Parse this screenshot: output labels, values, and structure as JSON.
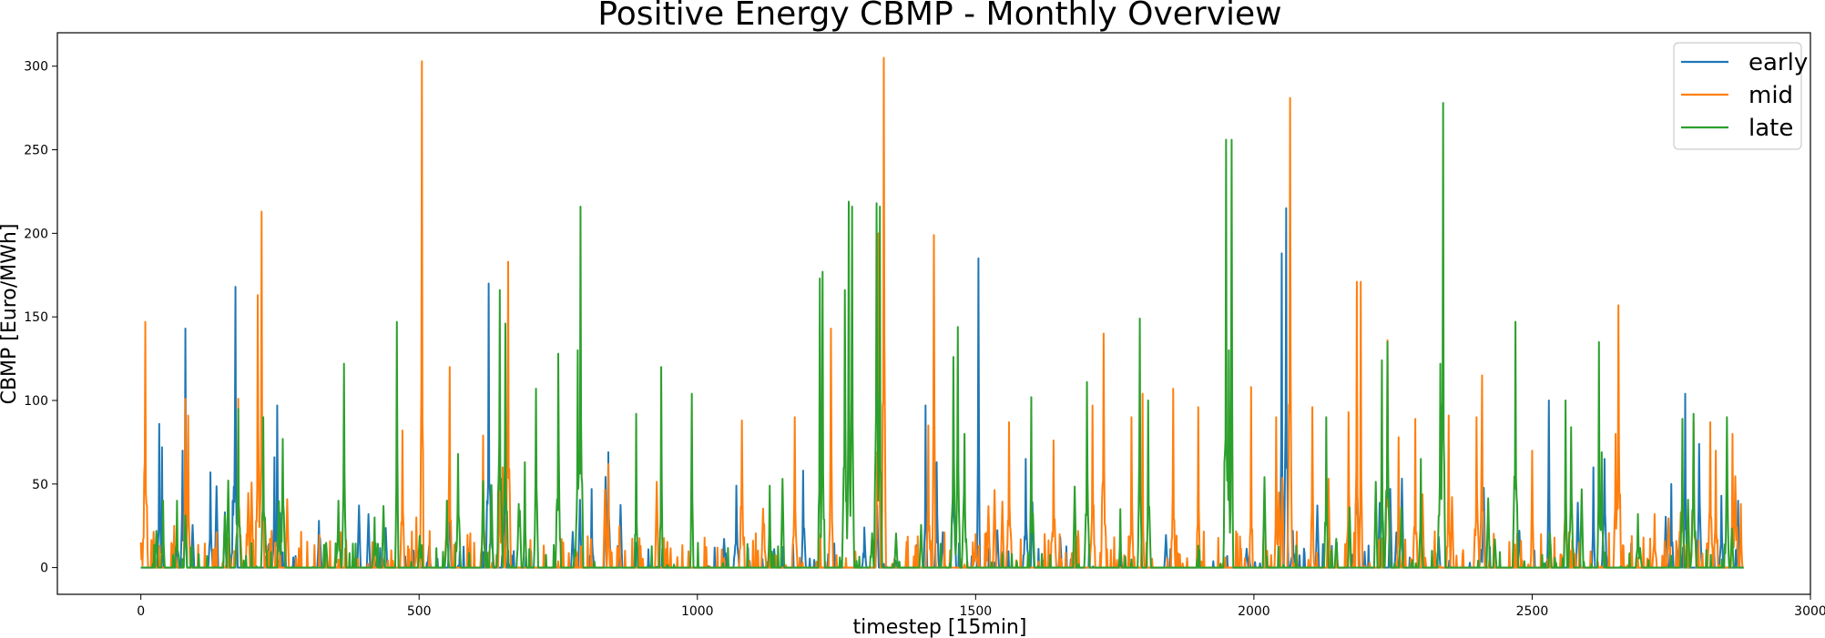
{
  "chart_data": {
    "type": "line",
    "title": "Positive Energy CBMP - Monthly Overview",
    "xlabel": "timestep [15min]",
    "ylabel": "CBMP [Euro/MWh]",
    "xlim": [
      -150,
      3000
    ],
    "ylim": [
      -16,
      320
    ],
    "xticks": [
      0,
      500,
      1000,
      1500,
      2000,
      2500,
      3000
    ],
    "yticks": [
      0,
      50,
      100,
      150,
      200,
      250,
      300
    ],
    "x_range": [
      0,
      2880
    ],
    "grid": false,
    "legend_position": "top-right",
    "series": [
      {
        "name": "early",
        "color": "#1f77b4",
        "peaks": [
          [
            33,
            86
          ],
          [
            38,
            72
          ],
          [
            80,
            143
          ],
          [
            75,
            70
          ],
          [
            170,
            168
          ],
          [
            165,
            40
          ],
          [
            125,
            57
          ],
          [
            245,
            97
          ],
          [
            240,
            66
          ],
          [
            320,
            28
          ],
          [
            625,
            170
          ],
          [
            630,
            44
          ],
          [
            810,
            47
          ],
          [
            840,
            69
          ],
          [
            1070,
            49
          ],
          [
            1190,
            58
          ],
          [
            1300,
            24
          ],
          [
            1410,
            97
          ],
          [
            1430,
            63
          ],
          [
            1505,
            185
          ],
          [
            1460,
            100
          ],
          [
            1590,
            65
          ],
          [
            2050,
            188
          ],
          [
            2058,
            215
          ],
          [
            2070,
            22
          ],
          [
            2185,
            110
          ],
          [
            2230,
            60
          ],
          [
            2530,
            100
          ],
          [
            2630,
            65
          ],
          [
            2610,
            60
          ],
          [
            2775,
            104
          ],
          [
            2800,
            74
          ],
          [
            2750,
            50
          ],
          [
            2840,
            43
          ],
          [
            2870,
            40
          ]
        ]
      },
      {
        "name": "mid",
        "color": "#ff7f0e",
        "peaks": [
          [
            0,
            15
          ],
          [
            8,
            147
          ],
          [
            80,
            101
          ],
          [
            85,
            91
          ],
          [
            60,
            25
          ],
          [
            175,
            101
          ],
          [
            210,
            163
          ],
          [
            217,
            213
          ],
          [
            190,
            20
          ],
          [
            470,
            82
          ],
          [
            505,
            303
          ],
          [
            495,
            30
          ],
          [
            555,
            120
          ],
          [
            550,
            40
          ],
          [
            615,
            79
          ],
          [
            660,
            183
          ],
          [
            650,
            60
          ],
          [
            840,
            62
          ],
          [
            860,
            25
          ],
          [
            1080,
            88
          ],
          [
            1120,
            26
          ],
          [
            1175,
            90
          ],
          [
            1240,
            143
          ],
          [
            1335,
            305
          ],
          [
            1325,
            200
          ],
          [
            1425,
            199
          ],
          [
            1415,
            85
          ],
          [
            1500,
            20
          ],
          [
            1560,
            87
          ],
          [
            1640,
            76
          ],
          [
            1730,
            140
          ],
          [
            1710,
            97
          ],
          [
            1800,
            104
          ],
          [
            1780,
            90
          ],
          [
            1855,
            107
          ],
          [
            1900,
            96
          ],
          [
            1995,
            108
          ],
          [
            2040,
            90
          ],
          [
            2065,
            281
          ],
          [
            2105,
            96
          ],
          [
            2170,
            93
          ],
          [
            2185,
            171
          ],
          [
            2192,
            171
          ],
          [
            2240,
            136
          ],
          [
            2260,
            78
          ],
          [
            2290,
            89
          ],
          [
            2350,
            91
          ],
          [
            2410,
            115
          ],
          [
            2400,
            90
          ],
          [
            2500,
            70
          ],
          [
            2560,
            70
          ],
          [
            2655,
            157
          ],
          [
            2650,
            80
          ],
          [
            2720,
            32
          ],
          [
            2790,
            87
          ],
          [
            2820,
            87
          ],
          [
            2830,
            70
          ],
          [
            2860,
            80
          ],
          [
            2875,
            38
          ]
        ]
      },
      {
        "name": "late",
        "color": "#2ca02c",
        "peaks": [
          [
            40,
            40
          ],
          [
            65,
            40
          ],
          [
            175,
            95
          ],
          [
            220,
            90
          ],
          [
            255,
            77
          ],
          [
            365,
            122
          ],
          [
            355,
            40
          ],
          [
            420,
            30
          ],
          [
            460,
            147
          ],
          [
            550,
            40
          ],
          [
            570,
            68
          ],
          [
            645,
            166
          ],
          [
            655,
            146
          ],
          [
            690,
            63
          ],
          [
            710,
            107
          ],
          [
            750,
            128
          ],
          [
            790,
            216
          ],
          [
            785,
            130
          ],
          [
            890,
            92
          ],
          [
            935,
            120
          ],
          [
            990,
            104
          ],
          [
            1130,
            49
          ],
          [
            1220,
            173
          ],
          [
            1225,
            177
          ],
          [
            1265,
            166
          ],
          [
            1272,
            219
          ],
          [
            1278,
            216
          ],
          [
            1322,
            218
          ],
          [
            1328,
            216
          ],
          [
            1460,
            126
          ],
          [
            1468,
            144
          ],
          [
            1480,
            80
          ],
          [
            1600,
            102
          ],
          [
            1700,
            111
          ],
          [
            1760,
            35
          ],
          [
            1795,
            149
          ],
          [
            1810,
            100
          ],
          [
            1950,
            256
          ],
          [
            1960,
            256
          ],
          [
            1955,
            130
          ],
          [
            2130,
            90
          ],
          [
            2230,
            124
          ],
          [
            2240,
            135
          ],
          [
            2300,
            65
          ],
          [
            2340,
            278
          ],
          [
            2335,
            122
          ],
          [
            2470,
            147
          ],
          [
            2560,
            100
          ],
          [
            2570,
            84
          ],
          [
            2620,
            135
          ],
          [
            2625,
            69
          ],
          [
            2690,
            32
          ],
          [
            2770,
            89
          ],
          [
            2790,
            92
          ],
          [
            2850,
            90
          ]
        ]
      }
    ]
  }
}
